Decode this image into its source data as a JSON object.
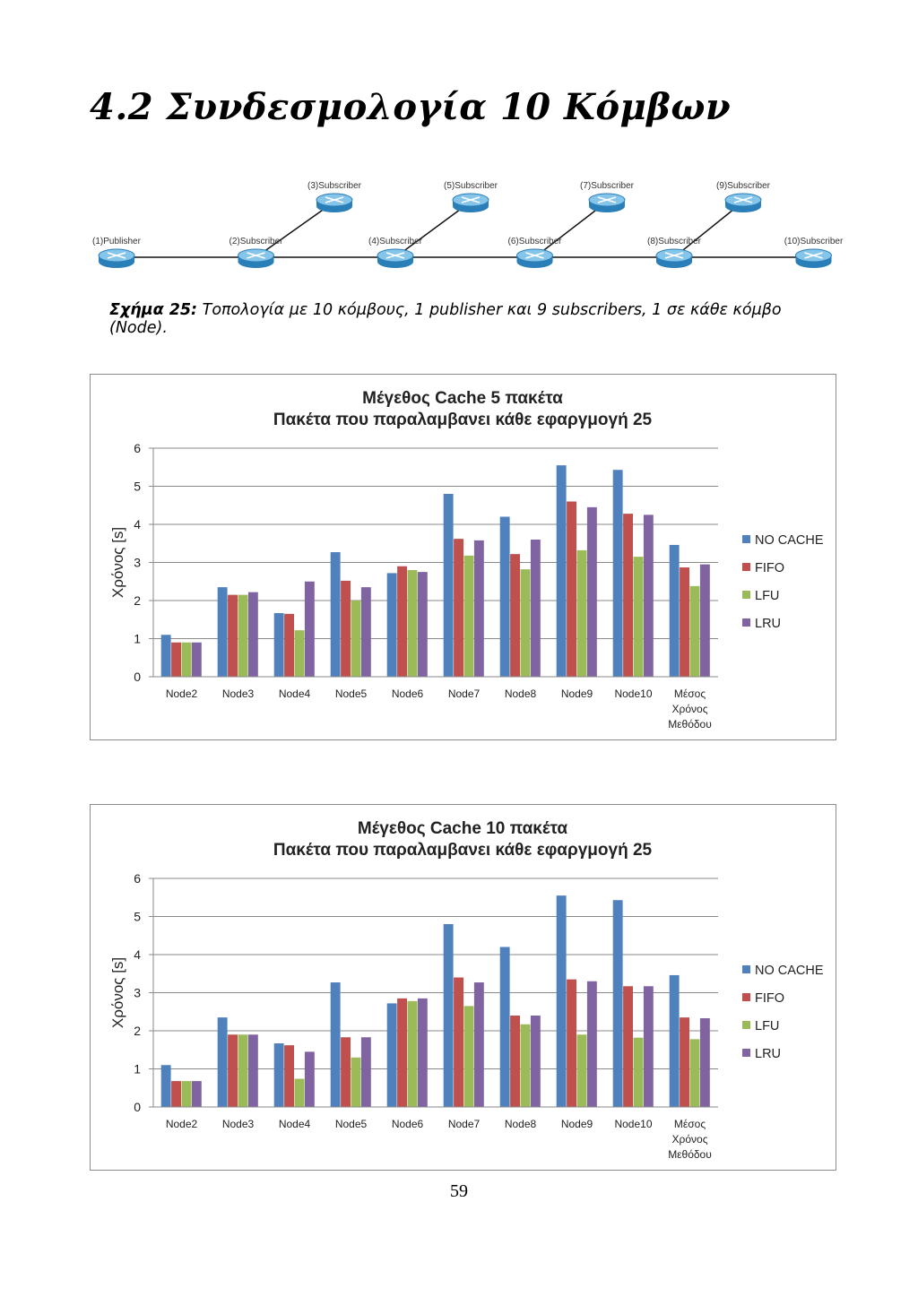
{
  "section": {
    "number": "4.2",
    "title": "Συνδεσμολογία 10 Κόμβων"
  },
  "topology": {
    "nodes": [
      {
        "id": 1,
        "label": "(1)Publisher",
        "row": "bottom"
      },
      {
        "id": 2,
        "label": "(2)Subscriber",
        "row": "bottom"
      },
      {
        "id": 3,
        "label": "(3)Subscriber",
        "row": "top"
      },
      {
        "id": 4,
        "label": "(4)Subscriber",
        "row": "bottom"
      },
      {
        "id": 5,
        "label": "(5)Subscriber",
        "row": "top"
      },
      {
        "id": 6,
        "label": "(6)Subscriber",
        "row": "bottom"
      },
      {
        "id": 7,
        "label": "(7)Subscriber",
        "row": "top"
      },
      {
        "id": 8,
        "label": "(8)Subscriber",
        "row": "bottom"
      },
      {
        "id": 9,
        "label": "(9)Subscriber",
        "row": "top"
      },
      {
        "id": 10,
        "label": "(10)Subscriber",
        "row": "bottom"
      }
    ],
    "links": [
      [
        1,
        2
      ],
      [
        2,
        4
      ],
      [
        4,
        6
      ],
      [
        6,
        8
      ],
      [
        8,
        10
      ],
      [
        2,
        3
      ],
      [
        4,
        5
      ],
      [
        6,
        7
      ],
      [
        8,
        9
      ]
    ],
    "icon": "router-icon"
  },
  "caption": {
    "label": "Σχήμα 25:",
    "text": "Τοπολογία με 10 κόμβους, 1 publisher και 9 subscribers, 1 σε κάθε κόμβο (Node)."
  },
  "chart_data": [
    {
      "type": "bar",
      "title": "Μέγεθος Cache 5 πακέτα",
      "subtitle": "Πακέτα που παραλαμβανει κάθε εφαργμογή 25",
      "ylabel": "Χρόνος [s]",
      "xlabel": "",
      "ylim": [
        0,
        6
      ],
      "yticks": [
        0,
        1,
        2,
        3,
        4,
        5,
        6
      ],
      "grid": "horizontal",
      "legend": "right",
      "categories": [
        "Node2",
        "Node3",
        "Node4",
        "Node5",
        "Node6",
        "Node7",
        "Node8",
        "Node9",
        "Node10",
        "Μέσος Χρόνος Μεθόδου"
      ],
      "series": [
        {
          "name": "NO CACHE",
          "color": "#4f81bd",
          "values": [
            1.1,
            2.35,
            1.67,
            3.27,
            2.72,
            4.8,
            4.2,
            5.55,
            5.43,
            3.46
          ]
        },
        {
          "name": "FIFO",
          "color": "#c0504d",
          "values": [
            0.9,
            2.15,
            1.65,
            2.52,
            2.9,
            3.62,
            3.22,
            4.6,
            4.28,
            2.87
          ]
        },
        {
          "name": "LFU",
          "color": "#9bbb59",
          "values": [
            0.9,
            2.15,
            1.22,
            2.0,
            2.8,
            3.18,
            2.82,
            3.32,
            3.15,
            2.38
          ]
        },
        {
          "name": "LRU",
          "color": "#8064a2",
          "values": [
            0.9,
            2.22,
            2.5,
            2.35,
            2.75,
            3.58,
            3.6,
            4.45,
            4.25,
            2.95
          ]
        }
      ]
    },
    {
      "type": "bar",
      "title": "Μέγεθος Cache 10 πακέτα",
      "subtitle": "Πακέτα που παραλαμβανει κάθε εφαργμογή 25",
      "ylabel": "Χρόνος [s]",
      "xlabel": "",
      "ylim": [
        0,
        6
      ],
      "yticks": [
        0,
        1,
        2,
        3,
        4,
        5,
        6
      ],
      "grid": "horizontal",
      "legend": "right",
      "categories": [
        "Node2",
        "Node3",
        "Node4",
        "Node5",
        "Node6",
        "Node7",
        "Node8",
        "Node9",
        "Node10",
        "Μέσος Χρόνος Μεθόδου"
      ],
      "series": [
        {
          "name": "NO CACHE",
          "color": "#4f81bd",
          "values": [
            1.1,
            2.35,
            1.67,
            3.27,
            2.72,
            4.8,
            4.2,
            5.55,
            5.43,
            3.46
          ]
        },
        {
          "name": "FIFO",
          "color": "#c0504d",
          "values": [
            0.68,
            1.9,
            1.62,
            1.83,
            2.85,
            3.4,
            2.4,
            3.35,
            3.17,
            2.35
          ]
        },
        {
          "name": "LFU",
          "color": "#9bbb59",
          "values": [
            0.68,
            1.9,
            0.74,
            1.3,
            2.78,
            2.65,
            2.17,
            1.9,
            1.82,
            1.78
          ]
        },
        {
          "name": "LRU",
          "color": "#8064a2",
          "values": [
            0.68,
            1.9,
            1.45,
            1.83,
            2.85,
            3.27,
            2.4,
            3.3,
            3.17,
            2.33
          ]
        }
      ]
    }
  ],
  "page": {
    "number": "59"
  }
}
